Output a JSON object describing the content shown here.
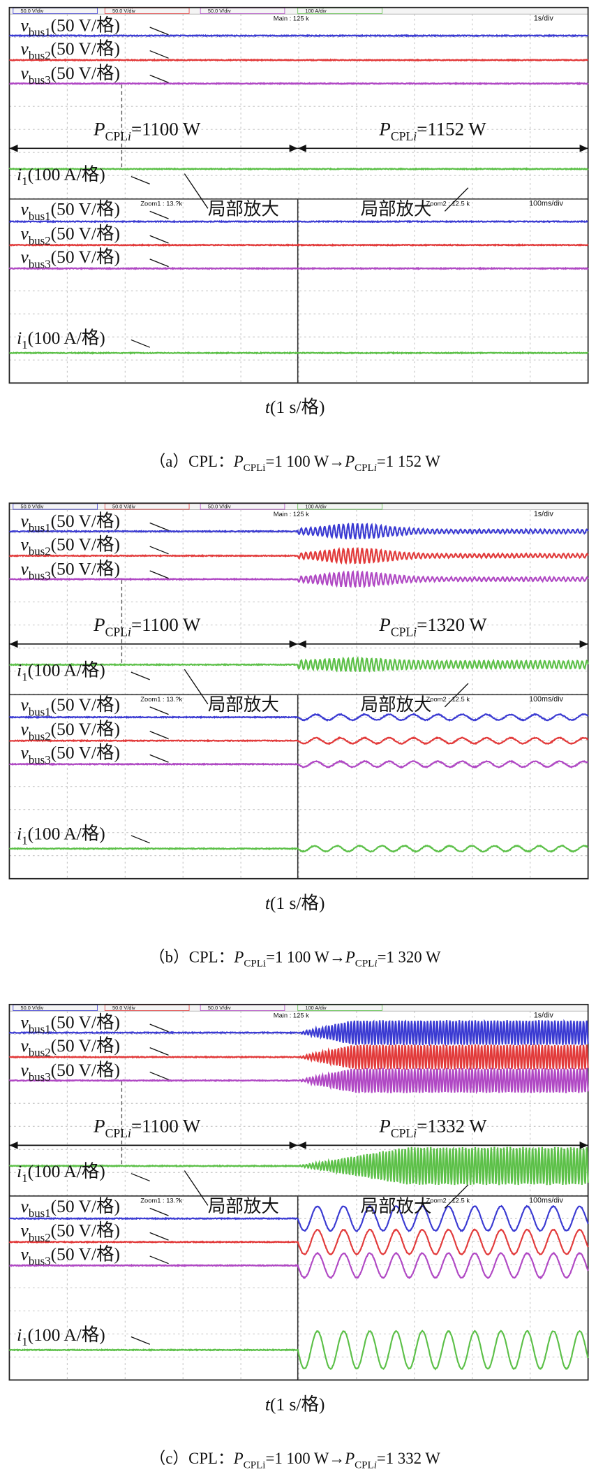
{
  "trace_labels": [
    {
      "symbol": "v",
      "subscript": "bus1",
      "scale": "(50 V/格)"
    },
    {
      "symbol": "v",
      "subscript": "bus2",
      "scale": "(50 V/格)"
    },
    {
      "symbol": "v",
      "subscript": "bus3",
      "scale": "(50 V/格)"
    },
    {
      "symbol": "i",
      "subscript": "1",
      "scale": "(100 A/格)"
    }
  ],
  "zoom_note": "局部放大",
  "scope": {
    "channels": [
      "50.0 V/div",
      "50.0 V/div",
      "50.0 V/div",
      "100 A/div"
    ],
    "main": "Main : 125 k",
    "main_div": "1s/div",
    "zoom1": "Zoom1 : 13.?k",
    "zoom2": "Zoom2 : 12.5 k",
    "zoom_div": "100ms/div"
  },
  "time_axis": {
    "symbol": "t",
    "unit": "(1 s/格)"
  },
  "power": {
    "symbol": "P",
    "subscript": "CPL",
    "index": "i"
  },
  "panels": [
    {
      "tag": "（a）CPL：",
      "before": "=1100 W",
      "after": "=1152 W",
      "caption_before": "=1 100 W",
      "arrow": "→",
      "caption_after": "=1 152 W"
    },
    {
      "tag": "（b）CPL：",
      "before": "=1100 W",
      "after": "=1320 W",
      "caption_before": "=1 100 W",
      "arrow": "→",
      "caption_after": "=1 320 W"
    },
    {
      "tag": "（c）CPL：",
      "before": "=1100 W",
      "after": "=1332 W",
      "caption_before": "=1 100 W",
      "arrow": "→",
      "caption_after": "=1 332 W"
    }
  ]
}
